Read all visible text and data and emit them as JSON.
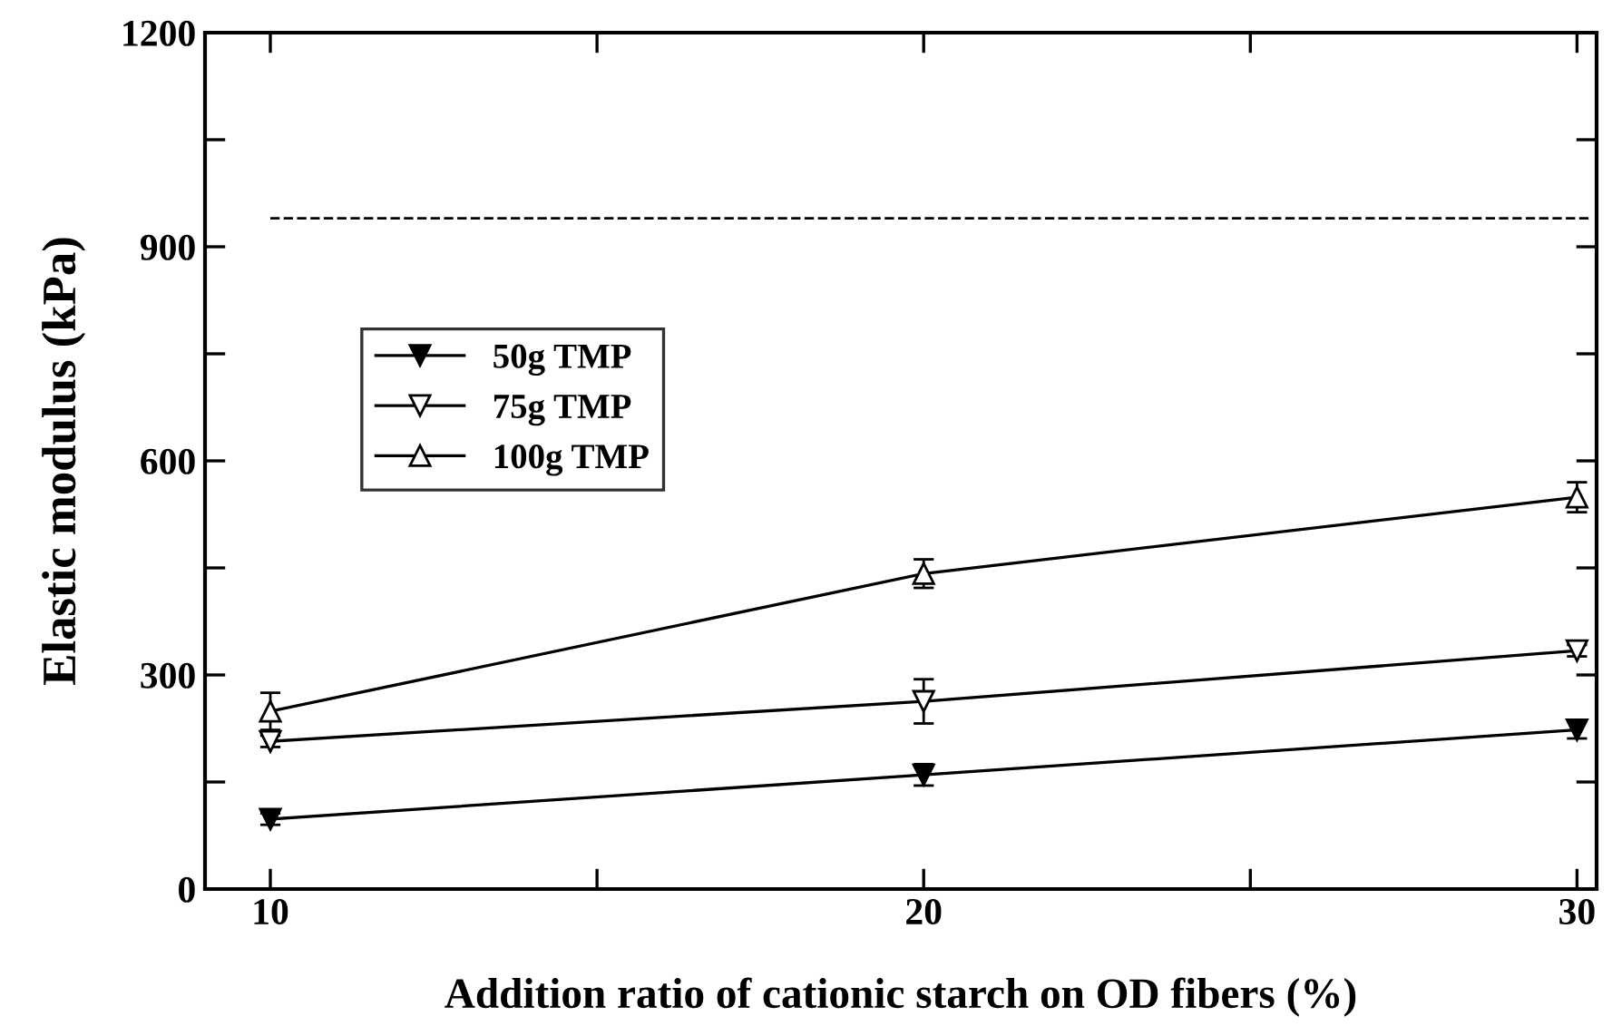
{
  "chart_data": {
    "type": "line",
    "xlabel": "Addition ratio of cationic starch on OD fibers (%)",
    "ylabel": "Elastic modulus (kPa)",
    "x": [
      10,
      20,
      30
    ],
    "series": [
      {
        "name": "50g TMP",
        "color": "#000000",
        "marker": "triangle_down_filled",
        "values": [
          98,
          160,
          223
        ],
        "errors": [
          8,
          15,
          12
        ]
      },
      {
        "name": "75g TMP",
        "color": "#000000",
        "marker": "triangle_down",
        "values": [
          207,
          263,
          334
        ],
        "errors": [
          8,
          31,
          8
        ]
      },
      {
        "name": "100g TMP",
        "color": "#000000",
        "marker": "triangle",
        "values": [
          249,
          442,
          549
        ],
        "errors": [
          26,
          20,
          21
        ]
      }
    ],
    "ref_lines": [
      {
        "axis": "y",
        "value": 940,
        "color": "#000000",
        "line_style": "dashed"
      }
    ],
    "xlim": [
      9,
      30.3
    ],
    "xticks": [
      10,
      {
        "value": 15,
        "label": null
      },
      20,
      {
        "value": 25,
        "label": null
      },
      30
    ],
    "ylim": [
      0,
      1200
    ],
    "yticks": [
      0,
      {
        "value": 150,
        "label": null
      },
      300,
      {
        "value": 450,
        "label": null
      },
      600,
      {
        "value": 750,
        "label": null
      },
      900,
      {
        "value": 1050,
        "label": null
      },
      1200
    ],
    "legend": "center left",
    "grid": false,
    "line_style": "solid"
  }
}
